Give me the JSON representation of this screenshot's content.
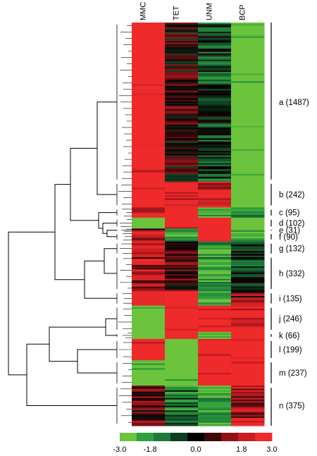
{
  "chart_data": {
    "type": "heatmap",
    "columns": [
      "MMC",
      "TET",
      "UNM",
      "BCP"
    ],
    "clusters": [
      {
        "id": "a",
        "label": "a (1487)",
        "count": 1487,
        "values": [
          3.0,
          0.4,
          -0.8,
          -3.0
        ]
      },
      {
        "id": "b",
        "label": "b (242)",
        "count": 242,
        "values": [
          3.0,
          2.5,
          2.5,
          -3.0
        ]
      },
      {
        "id": "c",
        "label": "c (95)",
        "count": 95,
        "values": [
          2.6,
          3.0,
          -2.4,
          -1.5
        ]
      },
      {
        "id": "d",
        "label": "d (102)",
        "count": 102,
        "values": [
          -3.0,
          3.0,
          3.0,
          -3.0
        ]
      },
      {
        "id": "e",
        "label": "e (31)",
        "count": 31,
        "values": [
          1.6,
          -2.0,
          3.0,
          -2.5
        ]
      },
      {
        "id": "f",
        "label": "f (90)",
        "count": 90,
        "values": [
          1.8,
          -2.6,
          3.0,
          -2.4
        ]
      },
      {
        "id": "g",
        "label": "g (132)",
        "count": 132,
        "values": [
          2.8,
          0.3,
          -2.4,
          -0.3
        ]
      },
      {
        "id": "h",
        "label": "h (332)",
        "count": 332,
        "values": [
          2.0,
          0.6,
          -2.4,
          -0.4
        ]
      },
      {
        "id": "i",
        "label": "i (135)",
        "count": 135,
        "values": [
          2.9,
          3.0,
          -2.6,
          1.4
        ]
      },
      {
        "id": "j",
        "label": "j (246)",
        "count": 246,
        "values": [
          -3.0,
          3.0,
          3.0,
          2.7
        ]
      },
      {
        "id": "k",
        "label": "k (66)",
        "count": 66,
        "values": [
          -3.0,
          3.0,
          -2.6,
          3.0
        ]
      },
      {
        "id": "l",
        "label": "l (199)",
        "count": 199,
        "values": [
          3.0,
          -3.0,
          3.0,
          3.0
        ]
      },
      {
        "id": "m",
        "label": "m (237)",
        "count": 237,
        "values": [
          -3.0,
          -3.0,
          3.0,
          3.0
        ]
      },
      {
        "id": "n",
        "label": "n (375)",
        "count": 375,
        "values": [
          1.0,
          -1.5,
          -2.5,
          2.0
        ]
      }
    ],
    "color_scale": {
      "ticks": [
        "-3.0",
        "-1.8",
        "0.0",
        "1.8",
        "3.0"
      ],
      "min": -3.0,
      "max": 3.0,
      "colors": [
        "#6cc33c",
        "#2e9f3e",
        "#1e7a3c",
        "#0e3d22",
        "#000000",
        "#3d0a0c",
        "#8e1218",
        "#c81e23",
        "#ee2a2a"
      ]
    },
    "grid": false,
    "legend": "bottom"
  }
}
